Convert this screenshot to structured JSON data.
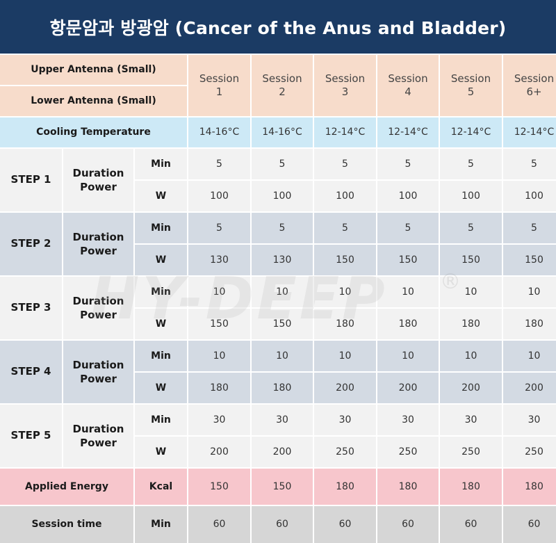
{
  "title": "항문암과 방광암 (Cancer of the Anus and Bladder)",
  "header": {
    "upper_antenna": "Upper Antenna (Small)",
    "lower_antenna": "Lower Antenna (Small)",
    "sessions": [
      {
        "line1": "Session",
        "line2": "1"
      },
      {
        "line1": "Session",
        "line2": "2"
      },
      {
        "line1": "Session",
        "line2": "3"
      },
      {
        "line1": "Session",
        "line2": "4"
      },
      {
        "line1": "Session",
        "line2": "5"
      },
      {
        "line1": "Session",
        "line2": "6+"
      }
    ]
  },
  "cooling": {
    "label": "Cooling Temperature",
    "values": [
      "14-16°C",
      "14-16°C",
      "12-14°C",
      "12-14°C",
      "12-14°C",
      "12-14°C"
    ]
  },
  "steps": [
    {
      "label": "STEP 1",
      "duration": "Duration",
      "power": "Power",
      "min_unit": "Min",
      "w_unit": "W",
      "min": [
        "5",
        "5",
        "5",
        "5",
        "5",
        "5"
      ],
      "w": [
        "100",
        "100",
        "100",
        "100",
        "100",
        "100"
      ]
    },
    {
      "label": "STEP 2",
      "duration": "Duration",
      "power": "Power",
      "min_unit": "Min",
      "w_unit": "W",
      "min": [
        "5",
        "5",
        "5",
        "5",
        "5",
        "5"
      ],
      "w": [
        "130",
        "130",
        "150",
        "150",
        "150",
        "150"
      ]
    },
    {
      "label": "STEP 3",
      "duration": "Duration",
      "power": "Power",
      "min_unit": "Min",
      "w_unit": "W",
      "min": [
        "10",
        "10",
        "10",
        "10",
        "10",
        "10"
      ],
      "w": [
        "150",
        "150",
        "180",
        "180",
        "180",
        "180"
      ]
    },
    {
      "label": "STEP 4",
      "duration": "Duration",
      "power": "Power",
      "min_unit": "Min",
      "w_unit": "W",
      "min": [
        "10",
        "10",
        "10",
        "10",
        "10",
        "10"
      ],
      "w": [
        "180",
        "180",
        "200",
        "200",
        "200",
        "200"
      ]
    },
    {
      "label": "STEP 5",
      "duration": "Duration",
      "power": "Power",
      "min_unit": "Min",
      "w_unit": "W",
      "min": [
        "30",
        "30",
        "30",
        "30",
        "30",
        "30"
      ],
      "w": [
        "200",
        "200",
        "250",
        "250",
        "250",
        "250"
      ]
    }
  ],
  "energy": {
    "label": "Applied Energy",
    "unit": "Kcal",
    "values": [
      "150",
      "150",
      "180",
      "180",
      "180",
      "180"
    ]
  },
  "session_time": {
    "label": "Session time",
    "unit": "Min",
    "values": [
      "60",
      "60",
      "60",
      "60",
      "60",
      "60"
    ]
  },
  "watermark": {
    "text": "HY-DEEP",
    "reg": "®"
  },
  "colors": {
    "title_bg": "#1b3b64",
    "peach": "#f7dccb",
    "cooling": "#cde9f6",
    "step_light": "#f2f2f2",
    "step_dark": "#d3dae3",
    "energy": "#f7c6cc",
    "session": "#d6d6d6"
  }
}
